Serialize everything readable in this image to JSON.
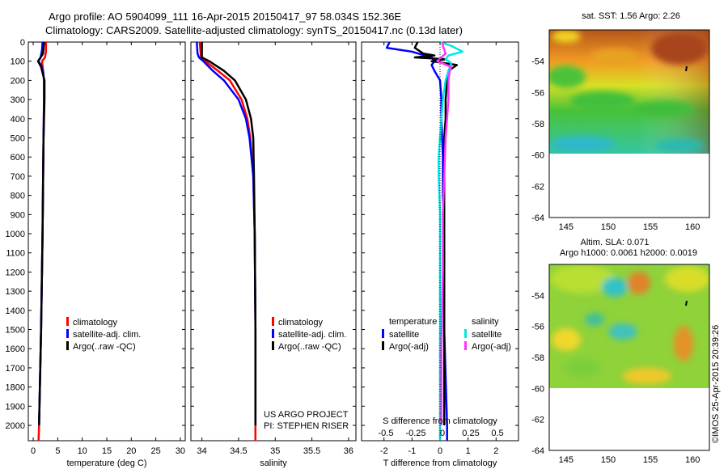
{
  "header": {
    "line1": "Argo profile: AO 5904099_111 16-Apr-2015 20150417_97 58.034S 152.36E",
    "line2": "Climatology: CARS2009. Satellite-adjusted climatology: synTS_20150417.nc (0.13d later)"
  },
  "credits": {
    "project": "US ARGO PROJECT",
    "pi": "PI: STEPHEN RISER",
    "stamp": "©IMOS 25-Apr-2015 20:39:26"
  },
  "colors": {
    "climatology": "#ff0000",
    "satellite": "#0000ff",
    "argo": "#000000",
    "s_satellite": "#00e5e5",
    "s_argo": "#ff33ff"
  },
  "chart_data": [
    {
      "type": "line",
      "id": "temperature",
      "xlabel": "temperature (deg C)",
      "xlim": [
        -1,
        31
      ],
      "xticks": [
        0,
        5,
        10,
        15,
        20,
        25,
        30
      ],
      "ylim": [
        2080,
        0
      ],
      "yticks": [
        0,
        100,
        200,
        300,
        400,
        500,
        600,
        700,
        800,
        900,
        1000,
        1100,
        1200,
        1300,
        1400,
        1500,
        1600,
        1700,
        1800,
        1900,
        2000
      ],
      "legend": [
        "climatology",
        "satellite-adj. clim.",
        "Argo(..raw -QC)"
      ],
      "series": [
        {
          "key": "climatology",
          "depth": [
            0,
            50,
            80,
            100,
            150,
            200,
            300,
            500,
            1000,
            1500,
            2000,
            2080
          ],
          "values": [
            2.6,
            2.6,
            2.4,
            1.8,
            2.0,
            2.2,
            2.2,
            2.1,
            1.9,
            1.6,
            1.2,
            1.1
          ]
        },
        {
          "key": "satellite",
          "depth": [
            0,
            40,
            80,
            100,
            120,
            150,
            200,
            300,
            500,
            1000,
            1500,
            2000
          ],
          "values": [
            1.9,
            1.8,
            1.5,
            1.0,
            1.6,
            2.0,
            2.2,
            2.2,
            2.1,
            1.9,
            1.6,
            1.2
          ]
        },
        {
          "key": "argo",
          "depth": [
            0,
            60,
            90,
            100,
            130,
            200,
            300,
            500,
            1000,
            1500,
            2000
          ],
          "values": [
            2.2,
            2.0,
            1.3,
            1.0,
            1.6,
            2.3,
            2.3,
            2.1,
            1.9,
            1.6,
            1.2
          ]
        }
      ]
    },
    {
      "type": "line",
      "id": "salinity",
      "xlabel": "salinity",
      "xlim": [
        33.85,
        36.1
      ],
      "xticks": [
        34,
        34.5,
        35,
        35.5,
        36
      ],
      "ylim": [
        2080,
        0
      ],
      "legend": [
        "climatology",
        "satellite-adj. clim.",
        "Argo(..raw -QC)"
      ],
      "series": [
        {
          "key": "climatology",
          "depth": [
            0,
            90,
            100,
            150,
            200,
            300,
            400,
            500,
            700,
            1000,
            1500,
            2000,
            2080
          ],
          "values": [
            33.97,
            33.99,
            34.05,
            34.22,
            34.38,
            34.54,
            34.62,
            34.66,
            34.7,
            34.72,
            34.73,
            34.73,
            34.73
          ]
        },
        {
          "key": "satellite",
          "depth": [
            0,
            60,
            80,
            100,
            150,
            200,
            300,
            400,
            500,
            700,
            1000,
            1500,
            2000
          ],
          "values": [
            33.93,
            33.94,
            33.96,
            34.02,
            34.15,
            34.3,
            34.5,
            34.6,
            34.65,
            34.7,
            34.72,
            34.73,
            34.73
          ]
        },
        {
          "key": "argo",
          "depth": [
            0,
            80,
            100,
            150,
            200,
            300,
            400,
            500,
            700,
            1000,
            1500,
            2000
          ],
          "values": [
            34.0,
            34.0,
            34.1,
            34.3,
            34.45,
            34.6,
            34.67,
            34.7,
            34.71,
            34.72,
            34.73,
            34.73
          ]
        }
      ]
    },
    {
      "type": "line",
      "id": "differences",
      "xlabel": "T difference from climatology",
      "xlabel_top": "S difference from climatology",
      "xlim": [
        -2.8,
        2.8
      ],
      "xticks": [
        -2,
        -1,
        0,
        1,
        2
      ],
      "xticks_top": [
        -0.5,
        -0.25,
        0,
        0.25,
        0.5
      ],
      "xticks_top_labels": [
        "-0.5",
        "-0.25",
        "0",
        "0.25",
        "0.5"
      ],
      "ylim": [
        2080,
        0
      ],
      "legend_group_t": "temperature",
      "legend_group_s": "salinity",
      "legend_t": [
        "satellite",
        "Argo(-adj)"
      ],
      "legend_s": [
        "satellite",
        "Argo(-adj)"
      ],
      "series": [
        {
          "key": "satellite",
          "name": "temperature satellite",
          "depth": [
            0,
            30,
            50,
            80,
            100,
            120,
            150,
            200,
            300,
            400,
            600,
            800,
            1000,
            1500,
            2000,
            2080
          ],
          "values": [
            -1.8,
            -1.9,
            -1.0,
            -0.3,
            -0.2,
            -0.3,
            -0.2,
            0,
            0.05,
            0.05,
            0.1,
            0.1,
            0.15,
            0.15,
            0.25,
            0.25
          ]
        },
        {
          "key": "argo",
          "name": "temperature Argo(-adj)",
          "depth": [
            0,
            30,
            60,
            70,
            80,
            90,
            100,
            120,
            150,
            200,
            300,
            400,
            500,
            700,
            1000,
            1500,
            2000
          ],
          "values": [
            -0.8,
            -0.9,
            -0.6,
            -0.2,
            -0.9,
            0.2,
            -0.3,
            0.6,
            0.3,
            0.25,
            0.2,
            0.2,
            0.15,
            0.15,
            0.15,
            0.15,
            0.15
          ]
        },
        {
          "key": "s_satellite",
          "name": "salinity satellite",
          "depth": [
            0,
            20,
            50,
            70,
            90,
            110,
            150,
            200,
            300,
            400,
            500,
            600,
            700,
            900,
            1200,
            1600,
            2000,
            2080
          ],
          "values": [
            0.0,
            0.4,
            0.8,
            0.3,
            0.2,
            0.4,
            0.3,
            0.2,
            0.1,
            0.05,
            0.0,
            -0.05,
            -0.05,
            0.0,
            0.0,
            0.0,
            0.0,
            0.0
          ]
        },
        {
          "key": "s_argo",
          "name": "salinity Argo(-adj)",
          "depth": [
            0,
            20,
            60,
            100,
            130,
            150,
            200,
            300,
            400,
            500,
            700,
            900,
            1200,
            1600,
            2000
          ],
          "values": [
            0.1,
            0.1,
            0.2,
            -0.1,
            0.4,
            0.35,
            0.3,
            0.3,
            0.25,
            0.2,
            0.15,
            0.1,
            0.1,
            0.05,
            0.05
          ]
        }
      ]
    },
    {
      "type": "heatmap",
      "id": "sst_map",
      "title": "sat. SST: 1.56 Argo: 2.26",
      "xlim": [
        143,
        162
      ],
      "xticks": [
        145,
        150,
        155,
        160
      ],
      "ylim": [
        -64,
        -52
      ],
      "yticks": [
        -54,
        -56,
        -58,
        -60,
        -62,
        -64
      ],
      "data_extent_lat": [
        -60,
        -52
      ],
      "argo_position": {
        "lon": 152.36,
        "lat": -58.034
      }
    },
    {
      "type": "heatmap",
      "id": "sla_map",
      "title": "Altim. SLA: 0.071",
      "subtitle": "Argo h1000: 0.0061 h2000: 0.0019",
      "xlim": [
        143,
        162
      ],
      "xticks": [
        145,
        150,
        155,
        160
      ],
      "ylim": [
        -64,
        -52
      ],
      "yticks": [
        -54,
        -56,
        -58,
        -60,
        -62,
        -64
      ],
      "data_extent_lat": [
        -60,
        -52
      ],
      "argo_position": {
        "lon": 152.36,
        "lat": -58.034
      }
    }
  ]
}
